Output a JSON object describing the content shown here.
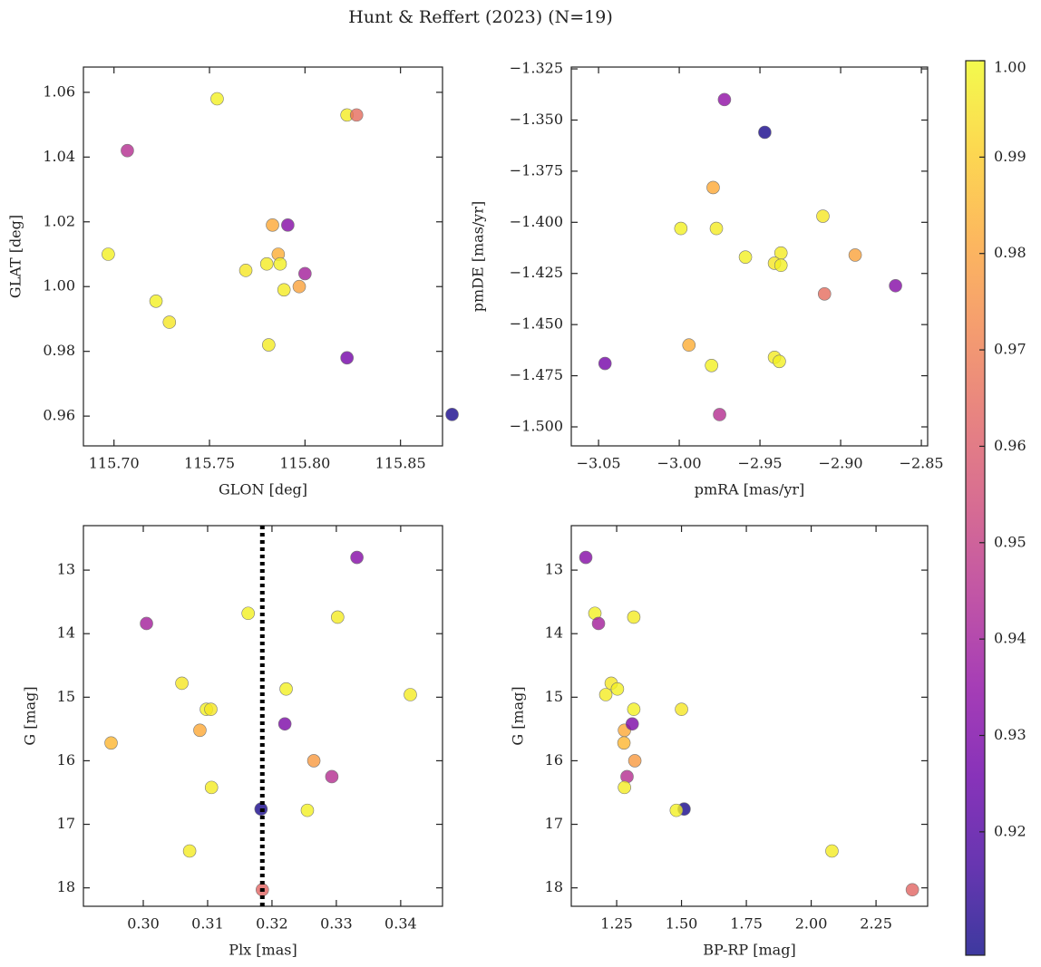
{
  "title": "Hunt & Reffert (2023) (N=19)",
  "marker_alpha": 0.8,
  "colorbar": {
    "cmap": "plasma",
    "clim": [
      0.9072,
      1.0
    ],
    "ticks": [
      0.92,
      0.93,
      0.94,
      0.95,
      0.96,
      0.97,
      0.98,
      0.99,
      {
        "value": 1.0,
        "label": "1.00"
      }
    ]
  },
  "chart_data": [
    {
      "type": "scatter",
      "xlabel": "GLON [deg]",
      "ylabel": "GLAT [deg]",
      "x": [
        115.754,
        115.822,
        115.827,
        115.707,
        115.783,
        115.791,
        115.697,
        115.786,
        115.769,
        115.78,
        115.787,
        115.8,
        115.789,
        115.797,
        115.722,
        115.729,
        115.781,
        115.822,
        115.877
      ],
      "y": [
        1.058,
        1.053,
        1.053,
        1.042,
        1.019,
        1.019,
        1.01,
        1.01,
        1.005,
        1.007,
        1.007,
        1.004,
        0.999,
        1.0,
        0.9955,
        0.989,
        0.982,
        0.978,
        0.9605
      ],
      "c": [
        0.998,
        0.997,
        0.965,
        0.945,
        0.982,
        0.932,
        0.998,
        0.983,
        0.996,
        0.997,
        0.998,
        0.94,
        0.997,
        0.98,
        0.998,
        0.996,
        0.997,
        0.928,
        0.909
      ],
      "xlim": [
        115.684,
        115.872
      ],
      "ylim": [
        0.9508,
        1.0678
      ],
      "xticks": [
        {
          "value": 115.7,
          "label": "115.70"
        },
        115.75,
        {
          "value": 115.8,
          "label": "115.80"
        },
        115.85
      ],
      "yticks": [
        0.96,
        0.98,
        {
          "value": 1.0,
          "label": "1.00"
        },
        1.02,
        1.04,
        1.06
      ],
      "y_inverted": false
    },
    {
      "type": "scatter",
      "xlabel": "pmRA [mas/yr]",
      "ylabel": "pmDE [mas/yr]",
      "x": [
        -2.972,
        -2.947,
        -2.979,
        -2.999,
        -2.977,
        -2.911,
        -2.959,
        -2.937,
        -2.941,
        -2.937,
        -2.891,
        -2.91,
        -2.866,
        -2.994,
        -3.046,
        -2.98,
        -2.941,
        -2.938,
        -2.975
      ],
      "y": [
        -1.34,
        -1.356,
        -1.383,
        -1.403,
        -1.403,
        -1.397,
        -1.417,
        -1.415,
        -1.42,
        -1.421,
        -1.416,
        -1.435,
        -1.431,
        -1.46,
        -1.469,
        -1.47,
        -1.466,
        -1.468,
        -1.494
      ],
      "c": [
        0.935,
        0.909,
        0.982,
        0.998,
        0.997,
        0.996,
        0.998,
        0.997,
        0.996,
        0.998,
        0.98,
        0.965,
        0.932,
        0.983,
        0.928,
        0.998,
        0.997,
        0.998,
        0.945
      ],
      "xlim": [
        -3.0669,
        -2.8461
      ],
      "ylim": [
        -1.5093,
        -1.3241
      ],
      "xticks": [
        {
          "value": -3.05,
          "label": "−3.05"
        },
        {
          "value": -3.0,
          "label": "−3.00"
        },
        {
          "value": -2.95,
          "label": "−2.95"
        },
        {
          "value": -2.9,
          "label": "−2.90"
        },
        {
          "value": -2.85,
          "label": "−2.85"
        }
      ],
      "yticks": [
        {
          "value": -1.5,
          "label": "−1.500"
        },
        {
          "value": -1.475,
          "label": "−1.475"
        },
        {
          "value": -1.45,
          "label": "−1.450"
        },
        {
          "value": -1.425,
          "label": "−1.425"
        },
        {
          "value": -1.4,
          "label": "−1.400"
        },
        {
          "value": -1.375,
          "label": "−1.375"
        },
        {
          "value": -1.35,
          "label": "−1.350"
        },
        {
          "value": -1.325,
          "label": "−1.325"
        }
      ],
      "y_inverted": false
    },
    {
      "type": "scatter",
      "xlabel": "Plx [mas]",
      "ylabel": "G [mag]",
      "x": [
        0.3332,
        0.3163,
        0.3302,
        0.3005,
        0.306,
        0.3222,
        0.3415,
        0.3098,
        0.3105,
        0.3088,
        0.322,
        0.295,
        0.3265,
        0.3293,
        0.3106,
        0.3183,
        0.3255,
        0.3072,
        0.3185
      ],
      "y": [
        12.8,
        13.68,
        13.74,
        13.84,
        14.78,
        14.87,
        14.96,
        15.19,
        15.19,
        15.52,
        15.42,
        15.72,
        16.0,
        16.25,
        16.42,
        16.76,
        16.78,
        17.42,
        18.03
      ],
      "c": [
        0.932,
        0.998,
        0.997,
        0.94,
        0.996,
        0.998,
        0.997,
        0.998,
        0.996,
        0.982,
        0.93,
        0.985,
        0.978,
        0.945,
        0.997,
        0.909,
        0.998,
        0.997,
        0.963
      ],
      "xlim": [
        0.2907,
        0.3465
      ],
      "ylim": [
        12.3,
        18.29
      ],
      "xticks": [
        {
          "value": 0.3,
          "label": "0.30"
        },
        0.31,
        0.32,
        0.33,
        0.34
      ],
      "yticks": [
        13,
        14,
        15,
        16,
        17,
        18
      ],
      "y_inverted": true,
      "vline": {
        "x": 0.3185,
        "color": "#000000",
        "style": "dotted"
      }
    },
    {
      "type": "scatter",
      "xlabel": "BP-RP [mag]",
      "ylabel": "G [mag]",
      "x": [
        1.131,
        1.166,
        1.316,
        1.18,
        1.229,
        1.253,
        1.208,
        1.316,
        1.5,
        1.28,
        1.31,
        1.278,
        1.32,
        1.29,
        1.28,
        1.51,
        1.48,
        2.08,
        2.39
      ],
      "y": [
        12.8,
        13.68,
        13.74,
        13.84,
        14.78,
        14.87,
        14.96,
        15.19,
        15.19,
        15.52,
        15.42,
        15.72,
        16.0,
        16.25,
        16.42,
        16.76,
        16.78,
        17.42,
        18.03
      ],
      "c": [
        0.932,
        0.998,
        0.997,
        0.94,
        0.996,
        0.998,
        0.997,
        0.998,
        0.996,
        0.982,
        0.93,
        0.985,
        0.978,
        0.945,
        0.997,
        0.909,
        0.998,
        0.997,
        0.963
      ],
      "xlim": [
        1.075,
        2.449
      ],
      "ylim": [
        12.3,
        18.29
      ],
      "xticks": [
        1.25,
        {
          "value": 1.5,
          "label": "1.50"
        },
        1.75,
        {
          "value": 2.0,
          "label": "2.00"
        },
        2.25
      ],
      "yticks": [
        13,
        14,
        15,
        16,
        17,
        18
      ],
      "y_inverted": true
    }
  ]
}
